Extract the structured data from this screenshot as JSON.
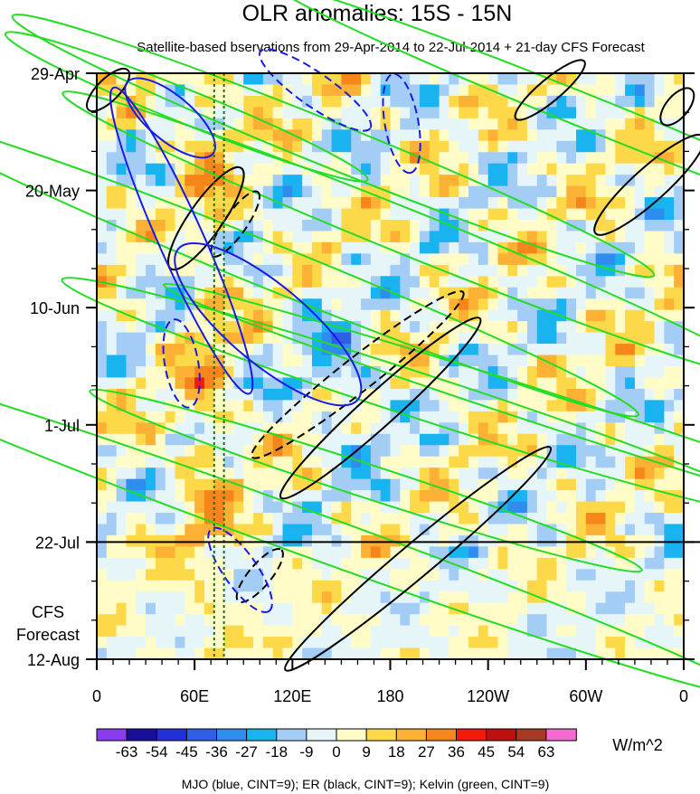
{
  "chart_data": {
    "type": "heatmap",
    "title": "OLR anomalies: 15S - 15N",
    "subtitle": "Satellite-based bservations from 29-Apr-2014 to 22-Jul-2014 + 21-day CFS Forecast",
    "x_tick_labels": [
      "0",
      "60E",
      "120E",
      "180",
      "120W",
      "60W",
      "0"
    ],
    "x_ticks_deg": [
      0,
      60,
      120,
      180,
      240,
      300,
      360
    ],
    "x_range_deg": [
      0,
      360
    ],
    "y_tick_labels": [
      "29-Apr",
      "20-May",
      "10-Jun",
      "1-Jul",
      "22-Jul",
      "12-Aug"
    ],
    "y_ticks_day": [
      0,
      21,
      42,
      63,
      84,
      105
    ],
    "y_range_day": [
      0,
      105
    ],
    "forecast_label_lines": [
      "CFS",
      "Forecast"
    ],
    "forecast_start_day": 84,
    "reference_lines_deg": [
      72,
      78
    ],
    "colorbar": {
      "levels": [
        -63,
        -54,
        -45,
        -36,
        -27,
        -18,
        -9,
        0,
        9,
        18,
        27,
        36,
        45,
        54,
        63
      ],
      "labels": [
        "-63",
        "-54",
        "-45",
        "-36",
        "-27",
        "-18",
        "-9",
        "0",
        "9",
        "18",
        "27",
        "36",
        "45",
        "54",
        "63"
      ],
      "colors": [
        "#8a3cf0",
        "#1a0f9c",
        "#2330d8",
        "#2e5fe6",
        "#2f8df0",
        "#19b4f0",
        "#a3cdf5",
        "#e6f6f8",
        "#fffcc8",
        "#fdd94a",
        "#fcb034",
        "#f6861c",
        "#f21a0a",
        "#c00f0f",
        "#a63a24",
        "#f56ad0"
      ],
      "units": "W/m^2"
    },
    "contours": {
      "mjo_color": "#1a1ae6",
      "er_color": "#000000",
      "kelvin_color": "#22dd22",
      "mjo": [
        {
          "lon": 52,
          "day": 30,
          "rx": 30,
          "ry": 4,
          "angle_deg": 66,
          "dashed": false
        },
        {
          "lon": 105,
          "day": 45,
          "rx": 21,
          "ry": 7,
          "angle_deg": 40,
          "dashed": false
        },
        {
          "lon": 45,
          "day": 8,
          "rx": 10,
          "ry": 4,
          "angle_deg": 40,
          "dashed": false
        },
        {
          "lon": 52,
          "day": 52,
          "rx": 8,
          "ry": 3,
          "angle_deg": 80,
          "dashed": true
        },
        {
          "lon": 187,
          "day": 9,
          "rx": 9,
          "ry": 3,
          "angle_deg": 80,
          "dashed": true
        },
        {
          "lon": 134,
          "day": 3,
          "rx": 12,
          "ry": 3,
          "angle_deg": 35,
          "dashed": true
        },
        {
          "lon": 88,
          "day": 89,
          "rx": 9,
          "ry": 3,
          "angle_deg": 55,
          "dashed": true
        }
      ],
      "er": [
        {
          "lon": 174,
          "day": 60,
          "rx": 24,
          "ry": 3,
          "angle_deg": -42,
          "dashed": false
        },
        {
          "lon": 197,
          "day": 87,
          "rx": 31,
          "ry": 3,
          "angle_deg": -40,
          "dashed": false
        },
        {
          "lon": 67,
          "day": 26,
          "rx": 11,
          "ry": 3,
          "angle_deg": -55,
          "dashed": false
        },
        {
          "lon": 339,
          "day": 20,
          "rx": 13,
          "ry": 3,
          "angle_deg": -42,
          "dashed": false
        },
        {
          "lon": 278,
          "day": 3,
          "rx": 8,
          "ry": 2,
          "angle_deg": -40,
          "dashed": false
        },
        {
          "lon": 7,
          "day": 3,
          "rx": 5,
          "ry": 2,
          "angle_deg": -45,
          "dashed": false
        },
        {
          "lon": 356,
          "day": 6,
          "rx": 4,
          "ry": 2,
          "angle_deg": -50,
          "dashed": false
        },
        {
          "lon": 160,
          "day": 54,
          "rx": 24,
          "ry": 3,
          "angle_deg": -38,
          "dashed": true
        },
        {
          "lon": 85,
          "day": 27,
          "rx": 7,
          "ry": 2,
          "angle_deg": -55,
          "dashed": true
        },
        {
          "lon": 100,
          "day": 90,
          "rx": 6,
          "ry": 2,
          "angle_deg": -50,
          "dashed": true
        }
      ],
      "kelvin": [
        {
          "lon": 55,
          "day": 6,
          "rx": 35,
          "ry": 3,
          "angle_deg": 22,
          "dashed": false
        },
        {
          "lon": 145,
          "day": 13,
          "rx": 62,
          "ry": 4,
          "angle_deg": 22,
          "dashed": false
        },
        {
          "lon": 110,
          "day": 35,
          "rx": 70,
          "ry": 4,
          "angle_deg": 22,
          "dashed": false
        },
        {
          "lon": 195,
          "day": 29,
          "rx": 68,
          "ry": 4,
          "angle_deg": 22,
          "dashed": false
        },
        {
          "lon": 310,
          "day": 8,
          "rx": 63,
          "ry": 3,
          "angle_deg": 22,
          "dashed": false
        },
        {
          "lon": 200,
          "day": 58,
          "rx": 68,
          "ry": 4,
          "angle_deg": 18,
          "dashed": false
        },
        {
          "lon": 295,
          "day": 62,
          "rx": 78,
          "ry": 3,
          "angle_deg": 18,
          "dashed": false
        },
        {
          "lon": 125,
          "day": 82,
          "rx": 86,
          "ry": 4,
          "angle_deg": 20,
          "dashed": false
        },
        {
          "lon": 165,
          "day": 73,
          "rx": 52,
          "ry": 3,
          "angle_deg": 18,
          "dashed": false
        }
      ]
    },
    "footer": "MJO (blue, CINT=9); ER (black, CINT=9); Kelvin (green, CINT=9)"
  }
}
